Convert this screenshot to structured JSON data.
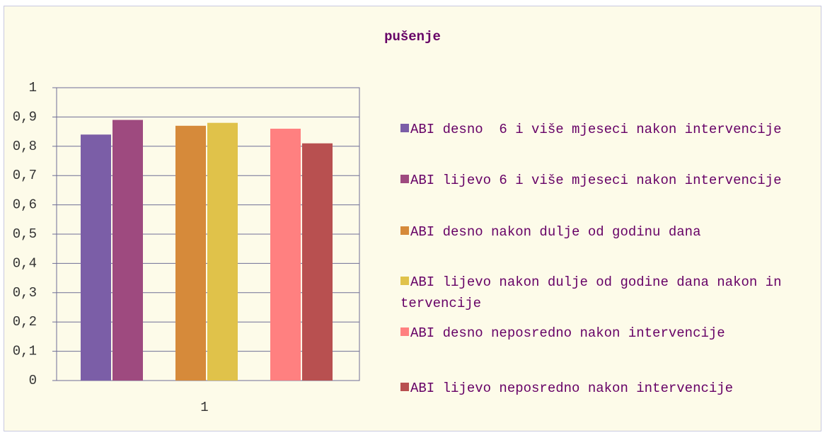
{
  "chart_data": {
    "type": "bar",
    "title": "pušenje",
    "categories": [
      "1"
    ],
    "series": [
      {
        "name": "ABI desno  6 i više mjeseci nakon intervencije",
        "color": "#7b5ea7",
        "values": [
          0.84
        ]
      },
      {
        "name": "ABI lijevo 6 i više mjeseci nakon intervencije",
        "color": "#9e4a7f",
        "values": [
          0.89
        ]
      },
      {
        "name": "ABI desno nakon dulje od godinu dana",
        "color": "#d68a3a",
        "values": [
          0.87
        ]
      },
      {
        "name": "ABI lijevo nakon dulje od godine dana nakon intervencije",
        "color": "#e0c24a",
        "values": [
          0.88
        ]
      },
      {
        "name": "ABI desno neposredno nakon intervencije",
        "color": "#ff8080",
        "values": [
          0.86
        ]
      },
      {
        "name": "ABI lijevo neposredno nakon intervencije",
        "color": "#b85050",
        "values": [
          0.81
        ]
      }
    ],
    "ylim": [
      0,
      1
    ],
    "yticks": [
      0,
      {
        "value": 0.1,
        "label": "0,1"
      },
      {
        "value": 0.2,
        "label": "0,2"
      },
      {
        "value": 0.3,
        "label": "0,3"
      },
      {
        "value": 0.4,
        "label": "0,4"
      },
      {
        "value": 0.5,
        "label": "0,5"
      },
      {
        "value": 0.6,
        "label": "0,6"
      },
      {
        "value": 0.7,
        "label": "0,7"
      },
      {
        "value": 0.8,
        "label": "0,8"
      },
      {
        "value": 0.9,
        "label": "0,9"
      },
      1
    ],
    "grid": true,
    "legend": "right"
  }
}
